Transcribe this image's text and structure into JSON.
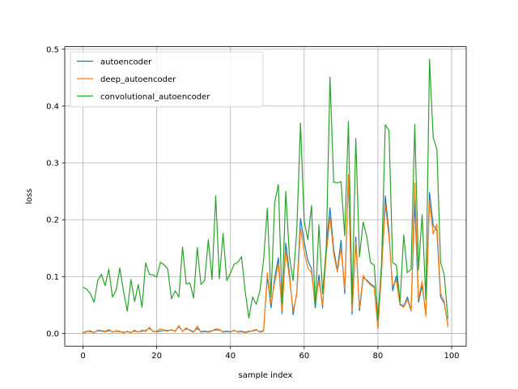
{
  "chart_data": {
    "type": "line",
    "xlabel": "sample index",
    "ylabel": "loss",
    "xlim": [
      -4.95,
      103.95
    ],
    "ylim": [
      -0.0225,
      0.5045
    ],
    "xticks": [
      0,
      20,
      40,
      60,
      80,
      100
    ],
    "yticks": [
      0.0,
      0.1,
      0.2,
      0.3,
      0.4,
      0.5
    ],
    "xtick_labels": [
      "0",
      "20",
      "40",
      "60",
      "80",
      "100"
    ],
    "ytick_labels": [
      "0.0",
      "0.1",
      "0.2",
      "0.3",
      "0.4",
      "0.5"
    ],
    "grid": true,
    "legend_position": "top-left",
    "series": [
      {
        "name": "autoencoder",
        "color": "#1f77b4",
        "values": [
          0.001,
          0.004,
          0.003,
          0.002,
          0.005,
          0.004,
          0.003,
          0.005,
          0.003,
          0.004,
          0.003,
          0.002,
          0.003,
          0.002,
          0.004,
          0.003,
          0.004,
          0.005,
          0.009,
          0.004,
          0.003,
          0.004,
          0.006,
          0.005,
          0.006,
          0.004,
          0.012,
          0.004,
          0.008,
          0.006,
          0.003,
          0.009,
          0.003,
          0.004,
          0.003,
          0.005,
          0.006,
          0.006,
          0.003,
          0.004,
          0.003,
          0.005,
          0.003,
          0.004,
          0.002,
          0.004,
          0.004,
          0.006,
          0.003,
          0.005,
          0.101,
          0.045,
          0.098,
          0.133,
          0.035,
          0.159,
          0.106,
          0.033,
          0.072,
          0.202,
          0.161,
          0.128,
          0.114,
          0.045,
          0.103,
          0.045,
          0.153,
          0.221,
          0.148,
          0.111,
          0.164,
          0.07,
          0.279,
          0.034,
          0.17,
          0.04,
          0.098,
          0.094,
          0.087,
          0.083,
          0.013,
          0.115,
          0.242,
          0.179,
          0.075,
          0.101,
          0.052,
          0.048,
          0.064,
          0.041,
          0.233,
          0.055,
          0.084,
          0.035,
          0.248,
          0.19,
          0.181,
          0.064,
          0.053,
          0.013
        ]
      },
      {
        "name": "deep_autoencoder",
        "color": "#ff7f0e",
        "values": [
          0.0,
          0.003,
          0.005,
          0.001,
          0.006,
          0.005,
          0.004,
          0.007,
          0.002,
          0.005,
          0.004,
          0.001,
          0.004,
          0.001,
          0.006,
          0.002,
          0.006,
          0.003,
          0.011,
          0.003,
          0.004,
          0.008,
          0.005,
          0.004,
          0.007,
          0.003,
          0.014,
          0.003,
          0.01,
          0.005,
          0.002,
          0.013,
          0.002,
          0.003,
          0.002,
          0.004,
          0.008,
          0.007,
          0.002,
          0.003,
          0.002,
          0.006,
          0.002,
          0.003,
          0.001,
          0.003,
          0.005,
          0.007,
          0.002,
          0.004,
          0.107,
          0.052,
          0.09,
          0.123,
          0.04,
          0.146,
          0.098,
          0.04,
          0.068,
          0.185,
          0.145,
          0.115,
          0.107,
          0.052,
          0.093,
          0.05,
          0.14,
          0.205,
          0.14,
          0.108,
          0.15,
          0.078,
          0.277,
          0.04,
          0.16,
          0.045,
          0.102,
          0.092,
          0.085,
          0.08,
          0.008,
          0.11,
          0.226,
          0.17,
          0.083,
          0.093,
          0.05,
          0.046,
          0.06,
          0.039,
          0.265,
          0.06,
          0.092,
          0.03,
          0.232,
          0.175,
          0.192,
          0.071,
          0.056,
          0.011
        ]
      },
      {
        "name": "convolutional_autoencoder",
        "color": "#2ca02c",
        "values": [
          0.081,
          0.078,
          0.07,
          0.055,
          0.093,
          0.104,
          0.084,
          0.113,
          0.064,
          0.076,
          0.115,
          0.074,
          0.039,
          0.095,
          0.056,
          0.086,
          0.046,
          0.124,
          0.104,
          0.103,
          0.099,
          0.125,
          0.121,
          0.113,
          0.061,
          0.075,
          0.064,
          0.152,
          0.087,
          0.089,
          0.062,
          0.151,
          0.086,
          0.093,
          0.165,
          0.095,
          0.242,
          0.096,
          0.176,
          0.093,
          0.106,
          0.122,
          0.125,
          0.135,
          0.074,
          0.027,
          0.064,
          0.051,
          0.075,
          0.13,
          0.22,
          0.064,
          0.23,
          0.262,
          0.054,
          0.25,
          0.135,
          0.093,
          0.182,
          0.37,
          0.198,
          0.165,
          0.225,
          0.045,
          0.191,
          0.07,
          0.151,
          0.451,
          0.266,
          0.265,
          0.267,
          0.172,
          0.373,
          0.053,
          0.343,
          0.135,
          0.196,
          0.17,
          0.125,
          0.12,
          0.025,
          0.124,
          0.367,
          0.357,
          0.125,
          0.12,
          0.055,
          0.173,
          0.107,
          0.113,
          0.368,
          0.112,
          0.209,
          0.06,
          0.482,
          0.345,
          0.324,
          0.125,
          0.103,
          0.025
        ]
      }
    ]
  }
}
